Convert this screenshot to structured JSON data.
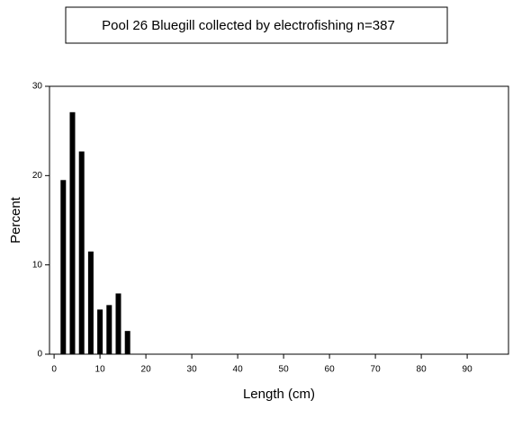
{
  "chart_data": {
    "type": "bar",
    "title": "Pool 26 Bluegill collected by electrofishing n=387",
    "x_label": "Length (cm)",
    "y_label": "Percent",
    "x": [
      2,
      4,
      6,
      8,
      10,
      12,
      14,
      16
    ],
    "values": [
      19.5,
      27.1,
      22.7,
      11.5,
      5.0,
      5.5,
      6.8,
      2.6
    ],
    "color": "#000000",
    "xlim": [
      -1,
      99
    ],
    "xticks": [
      0,
      10,
      20,
      30,
      40,
      50,
      60,
      70,
      80,
      90
    ],
    "ylim": [
      0,
      30
    ],
    "yticks": [
      0,
      10,
      20,
      30
    ],
    "grid": false
  }
}
